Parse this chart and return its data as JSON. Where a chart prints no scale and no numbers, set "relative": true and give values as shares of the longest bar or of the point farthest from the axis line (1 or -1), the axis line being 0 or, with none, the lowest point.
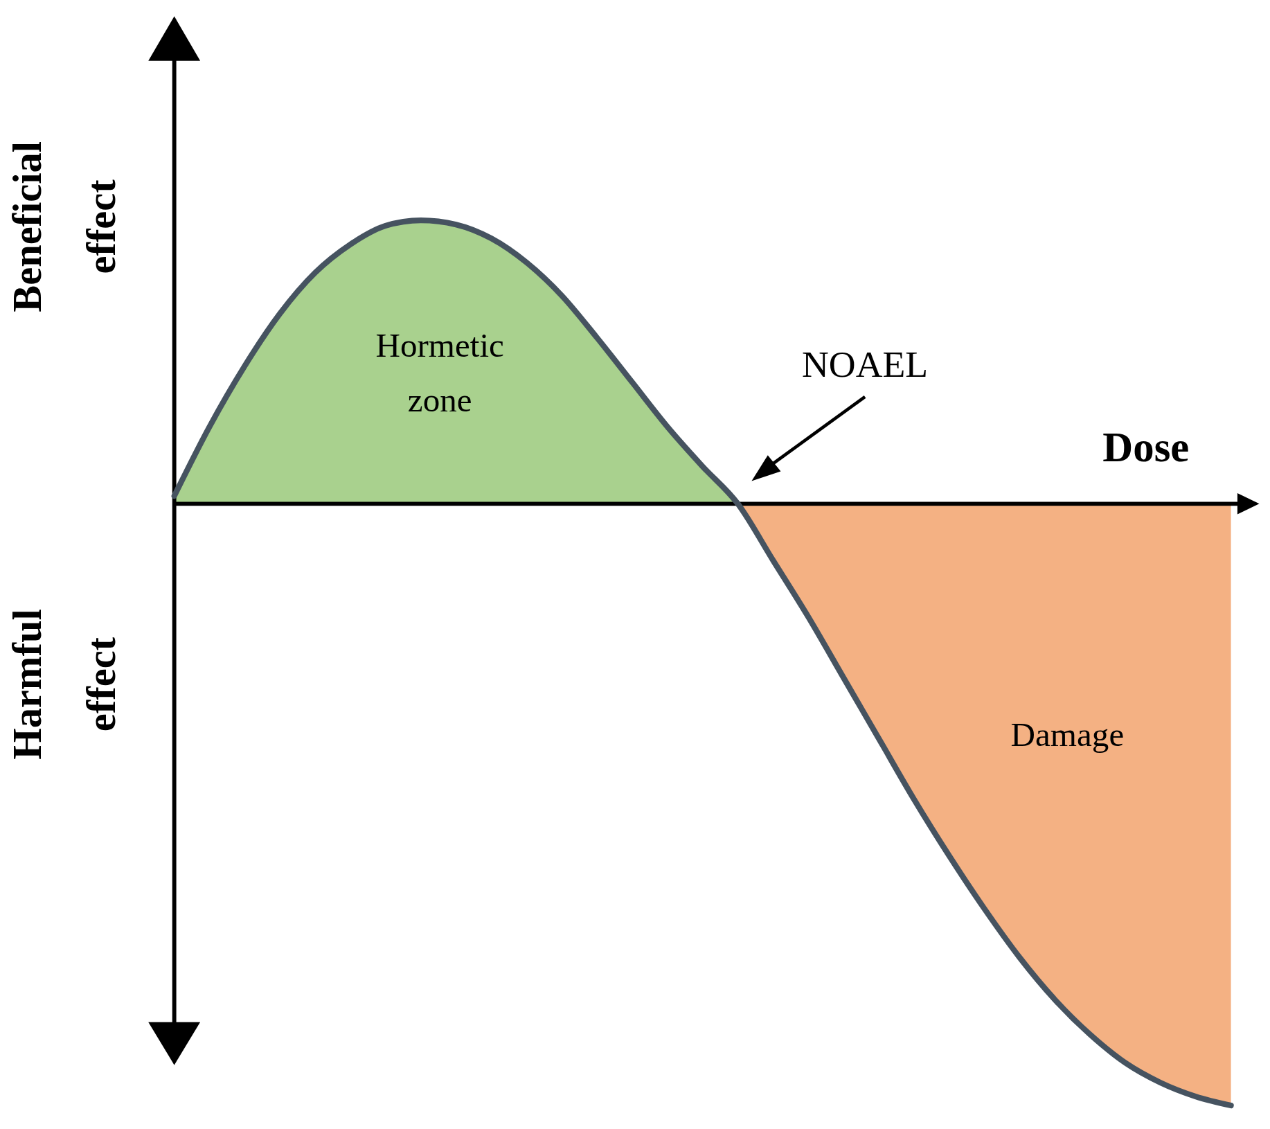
{
  "chart_data": {
    "type": "line",
    "relative": true,
    "xlabel": "Dose",
    "annotations": [
      "Beneficial effect",
      "Harmful effect",
      "Hormetic zone",
      "NOAEL",
      "Damage"
    ],
    "categories": [
      null,
      null,
      null,
      null,
      null,
      null,
      null,
      null,
      null,
      null,
      null,
      null,
      null,
      null,
      null,
      null,
      null,
      null,
      null,
      null,
      null,
      null,
      null,
      null,
      null,
      null,
      null,
      null,
      null,
      null,
      null
    ],
    "series": [
      {
        "type": "area",
        "color": "#a9d18e",
        "values": [
          0.013,
          0.128,
          0.229,
          0.316,
          0.384,
          0.431,
          0.462,
          0.471,
          0.464,
          0.441,
          0.401,
          0.346,
          0.276,
          0.202,
          0.128,
          0.062,
          0,
          null,
          null,
          null,
          null,
          null,
          null,
          null,
          null,
          null,
          null,
          null,
          null,
          null,
          null
        ]
      },
      {
        "type": "area",
        "color": "#f4b183",
        "values": [
          null,
          null,
          null,
          null,
          null,
          null,
          null,
          null,
          null,
          null,
          null,
          null,
          null,
          null,
          null,
          null,
          0,
          -0.094,
          -0.188,
          -0.289,
          -0.39,
          -0.491,
          -0.585,
          -0.673,
          -0.754,
          -0.824,
          -0.882,
          -0.929,
          -0.962,
          -0.985,
          -1
        ]
      },
      {
        "color": "#465360",
        "values": [
          0.013,
          0.128,
          0.229,
          0.316,
          0.384,
          0.431,
          0.462,
          0.471,
          0.464,
          0.441,
          0.401,
          0.346,
          0.276,
          0.202,
          0.128,
          0.062,
          0,
          -0.094,
          -0.188,
          -0.289,
          -0.39,
          -0.491,
          -0.585,
          -0.673,
          -0.754,
          -0.824,
          -0.882,
          -0.929,
          -0.962,
          -0.985,
          -1
        ]
      }
    ]
  }
}
